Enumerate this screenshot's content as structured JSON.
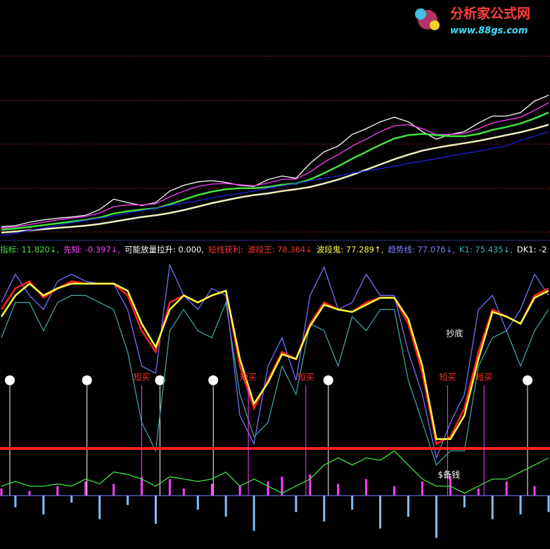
{
  "chart_data": [
    {
      "type": "line",
      "xlim": [
        0,
        39
      ],
      "ylim": [
        0,
        335
      ],
      "x": [
        0,
        1,
        2,
        3,
        4,
        5,
        6,
        7,
        8,
        9,
        10,
        11,
        12,
        13,
        14,
        15,
        16,
        17,
        18,
        19,
        20,
        21,
        22,
        23,
        24,
        25,
        26,
        27,
        28,
        29,
        30,
        31,
        32,
        33,
        34,
        35,
        36,
        37,
        38,
        39
      ],
      "series": [
        {
          "color": "#ffffff",
          "values": [
            15,
            17,
            23,
            27,
            30,
            32,
            35,
            45,
            63,
            57,
            52,
            57,
            77,
            87,
            93,
            95,
            92,
            87,
            85,
            97,
            103,
            99,
            125,
            145,
            155,
            175,
            185,
            197,
            205,
            197,
            180,
            167,
            175,
            180,
            195,
            207,
            207,
            213,
            233,
            243
          ]
        },
        {
          "color": "#ff40ff",
          "values": [
            13,
            15,
            19,
            23,
            27,
            30,
            33,
            39,
            50,
            53,
            53,
            55,
            67,
            77,
            85,
            89,
            90,
            88,
            86,
            91,
            97,
            98,
            110,
            127,
            140,
            155,
            167,
            180,
            190,
            192,
            185,
            175,
            175,
            177,
            185,
            195,
            200,
            205,
            217,
            230
          ]
        },
        {
          "color": "#40e040",
          "values": [
            10,
            12,
            15,
            18,
            21,
            24,
            27,
            31,
            38,
            42,
            45,
            47,
            54,
            62,
            70,
            76,
            80,
            82,
            82,
            84,
            88,
            90,
            97,
            108,
            120,
            133,
            145,
            157,
            168,
            174,
            176,
            174,
            172,
            172,
            176,
            183,
            188,
            194,
            203,
            213
          ]
        },
        {
          "color": "#f0f0c0",
          "values": [
            5,
            7,
            9,
            11,
            13,
            15,
            17,
            20,
            24,
            28,
            32,
            35,
            39,
            44,
            50,
            56,
            61,
            66,
            70,
            73,
            77,
            80,
            84,
            90,
            97,
            105,
            114,
            123,
            132,
            140,
            147,
            152,
            156,
            160,
            164,
            169,
            174,
            179,
            185,
            192
          ]
        },
        {
          "color": "#2020e0",
          "values": [
            0,
            4,
            9,
            13,
            17,
            22,
            26,
            30,
            34,
            39,
            43,
            47,
            52,
            56,
            60,
            65,
            69,
            73,
            77,
            82,
            86,
            90,
            95,
            99,
            103,
            108,
            112,
            116,
            120,
            125,
            129,
            133,
            138,
            142,
            146,
            151,
            155,
            165,
            172,
            180
          ]
        }
      ],
      "watermark": {
        "title": "分析家公式网",
        "url": "www.88gs.com"
      }
    },
    {
      "type": "line",
      "xlim": [
        0,
        39
      ],
      "ylim": [
        0,
        100
      ],
      "threshold": 20,
      "x": [
        0,
        1,
        2,
        3,
        4,
        5,
        6,
        7,
        8,
        9,
        10,
        11,
        12,
        13,
        14,
        15,
        16,
        17,
        18,
        19,
        20,
        21,
        22,
        23,
        24,
        25,
        26,
        27,
        28,
        29,
        30,
        31,
        32,
        33,
        34,
        35,
        36,
        37,
        38,
        39
      ],
      "readouts": [
        {
          "label": "指标: 11.820↓,",
          "color": "#40e040"
        },
        {
          "label": "先知: -0.397↓,",
          "color": "#ff40ff"
        },
        {
          "label": "可能放量拉升: 0.000,",
          "color": "#ffffff"
        },
        {
          "label": "短线获利:",
          "color": "#ff3030"
        },
        {
          "label": "波段王: 78.364↓",
          "color": "#ff3030"
        },
        {
          "label": "波段鬼: 77.289↑,",
          "color": "#ffff40"
        },
        {
          "label": "趋势线: 77.076↓,",
          "color": "#8080ff"
        },
        {
          "label": "K1: 75.435↓,",
          "color": "#40b0b0"
        },
        {
          "label": "DK1: -2",
          "color": "#ffffff"
        }
      ],
      "series": [
        {
          "color": "#40a0a0",
          "values": [
            67,
            82,
            82,
            70,
            82,
            85,
            85,
            82,
            79,
            61,
            31,
            19,
            70,
            79,
            70,
            67,
            82,
            43,
            25,
            31,
            55,
            43,
            73,
            70,
            55,
            76,
            70,
            79,
            79,
            49,
            31,
            13,
            19,
            19,
            55,
            67,
            70,
            55,
            70,
            79
          ]
        },
        {
          "color": "#7070ff",
          "values": [
            82,
            94,
            85,
            79,
            91,
            94,
            91,
            90,
            90,
            79,
            55,
            52,
            98,
            85,
            79,
            88,
            85,
            34,
            22,
            55,
            67,
            49,
            85,
            97,
            79,
            82,
            94,
            85,
            85,
            61,
            43,
            16,
            31,
            43,
            79,
            85,
            70,
            79,
            94,
            85
          ]
        },
        {
          "color": "#ff2020",
          "values": [
            79,
            88,
            91,
            84,
            88,
            91,
            90,
            90,
            90,
            85,
            70,
            61,
            82,
            85,
            82,
            85,
            87,
            55,
            37,
            49,
            61,
            58,
            73,
            82,
            79,
            78,
            82,
            84,
            84,
            73,
            52,
            22,
            25,
            37,
            61,
            79,
            76,
            73,
            85,
            88
          ]
        },
        {
          "color": "#ffff40",
          "values": [
            76,
            85,
            90,
            85,
            88,
            90,
            90,
            90,
            90,
            87,
            73,
            63,
            79,
            85,
            82,
            85,
            87,
            58,
            39,
            48,
            60,
            58,
            72,
            81,
            79,
            78,
            81,
            84,
            84,
            75,
            55,
            24,
            24,
            34,
            58,
            78,
            76,
            73,
            84,
            87
          ]
        },
        {
          "color": "#40e040",
          "values": [
            4,
            6,
            4,
            4,
            5,
            4,
            7,
            5,
            10,
            9,
            7,
            4,
            8,
            7,
            6,
            7,
            10,
            4,
            7,
            4,
            1,
            4,
            7,
            13,
            16,
            13,
            16,
            15,
            19,
            13,
            7,
            4,
            4,
            1,
            4,
            7,
            7,
            10,
            13,
            16
          ]
        }
      ],
      "bars": [
        3,
        -5,
        2,
        -8,
        4,
        -3,
        6,
        -10,
        5,
        -4,
        8,
        -12,
        7,
        3,
        -6,
        5,
        -9,
        4,
        -15,
        6,
        8,
        -7,
        9,
        -11,
        5,
        -6,
        7,
        -14,
        4,
        -9,
        6,
        -18,
        8,
        -5,
        3,
        -10,
        6,
        -8,
        4,
        -7
      ],
      "annotations": [
        {
          "text": "短买",
          "at": 10
        },
        {
          "text": "短买",
          "at": 17.6
        },
        {
          "text": "短买",
          "at": 21.7
        },
        {
          "text": "短买",
          "at": 31.8
        },
        {
          "text": "短买",
          "at": 34.4
        },
        {
          "text": "抄底",
          "at": 32.3
        },
        {
          "text": "$备钱",
          "at": 31.9
        }
      ],
      "smileys": [
        0.6,
        6.1,
        11.3,
        15.1,
        23.3,
        37.5
      ]
    }
  ]
}
